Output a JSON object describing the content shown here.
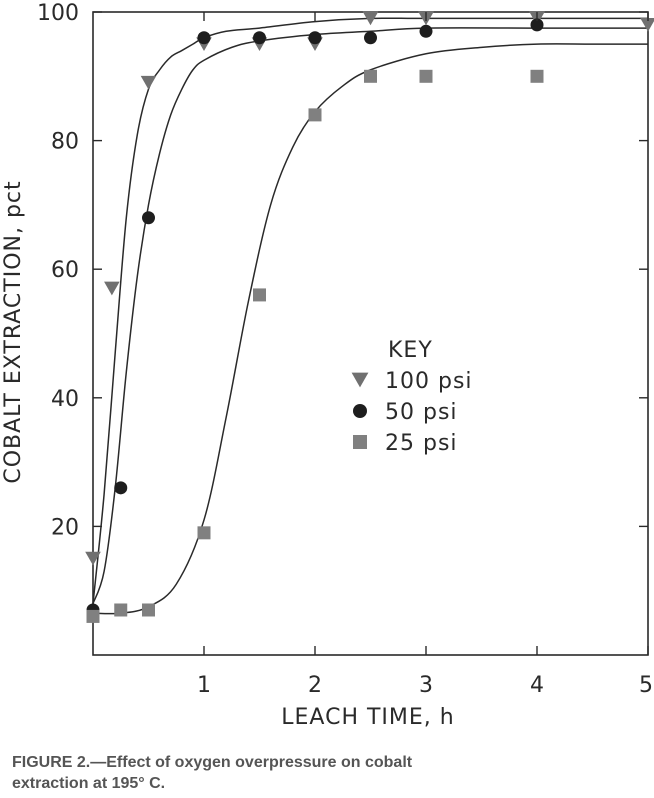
{
  "chart_data": {
    "type": "scatter",
    "xlabel": "LEACH TIME, h",
    "ylabel": "COBALT EXTRACTION, pct",
    "xlim": [
      0,
      5
    ],
    "ylim": [
      0,
      100
    ],
    "x_ticks": [
      "1",
      "2",
      "3",
      "4",
      "5"
    ],
    "y_ticks": [
      "20",
      "40",
      "60",
      "80",
      "100"
    ],
    "grid": false,
    "legend_title": "KEY",
    "legend_position": "center",
    "series": [
      {
        "name": "100 psi",
        "marker": "triangle-down",
        "color": "#707070",
        "x": [
          0.0,
          0.17,
          0.5,
          1.0,
          1.5,
          2.0,
          2.5,
          3.0,
          4.0,
          5.0
        ],
        "y": [
          15,
          57,
          89,
          95,
          95,
          95,
          99,
          99,
          99,
          98
        ],
        "fit_x": [
          0,
          0.1,
          0.2,
          0.3,
          0.4,
          0.5,
          0.6,
          0.7,
          0.8,
          0.9,
          1.0,
          1.2,
          1.5,
          2.0,
          2.5,
          3.0,
          4.0,
          5.0
        ],
        "fit_y": [
          8,
          25,
          47,
          68,
          81,
          88,
          91,
          93,
          94,
          95,
          96,
          97,
          97.5,
          98.5,
          99,
          99,
          99,
          99
        ]
      },
      {
        "name": "50 psi",
        "marker": "circle",
        "color": "#1e1e1e",
        "x": [
          0.0,
          0.25,
          0.5,
          1.0,
          1.5,
          2.0,
          2.5,
          3.0,
          4.0
        ],
        "y": [
          7,
          26,
          68,
          96,
          96,
          96,
          96,
          97,
          98
        ],
        "fit_x": [
          0,
          0.1,
          0.2,
          0.3,
          0.4,
          0.5,
          0.6,
          0.7,
          0.8,
          0.9,
          1.0,
          1.25,
          1.5,
          2.0,
          2.5,
          3.0,
          4.0,
          5.0
        ],
        "fit_y": [
          8,
          13,
          26,
          44,
          59,
          70,
          78,
          84,
          88,
          91,
          92.5,
          94.5,
          95.5,
          96.5,
          97,
          97.5,
          97.5,
          97.5
        ]
      },
      {
        "name": "25 psi",
        "marker": "square",
        "color": "#808080",
        "x": [
          0.0,
          0.25,
          0.5,
          1.0,
          1.5,
          2.0,
          2.5,
          3.0,
          4.0
        ],
        "y": [
          6,
          7,
          7,
          19,
          56,
          84,
          90,
          90,
          90
        ],
        "fit_x": [
          0,
          0.25,
          0.5,
          0.75,
          1.0,
          1.2,
          1.4,
          1.6,
          1.8,
          2.0,
          2.25,
          2.5,
          3.0,
          3.5,
          4.0,
          4.5,
          5.0
        ],
        "fit_y": [
          6.5,
          6.5,
          7.5,
          11,
          21,
          37,
          55,
          70,
          79,
          84.5,
          88.5,
          91,
          93.5,
          94.5,
          95,
          95,
          95
        ]
      }
    ]
  },
  "caption": {
    "line1": "FIGURE 2.—Effect of oxygen overpressure on cobalt",
    "line2": "extraction at 195° C."
  }
}
